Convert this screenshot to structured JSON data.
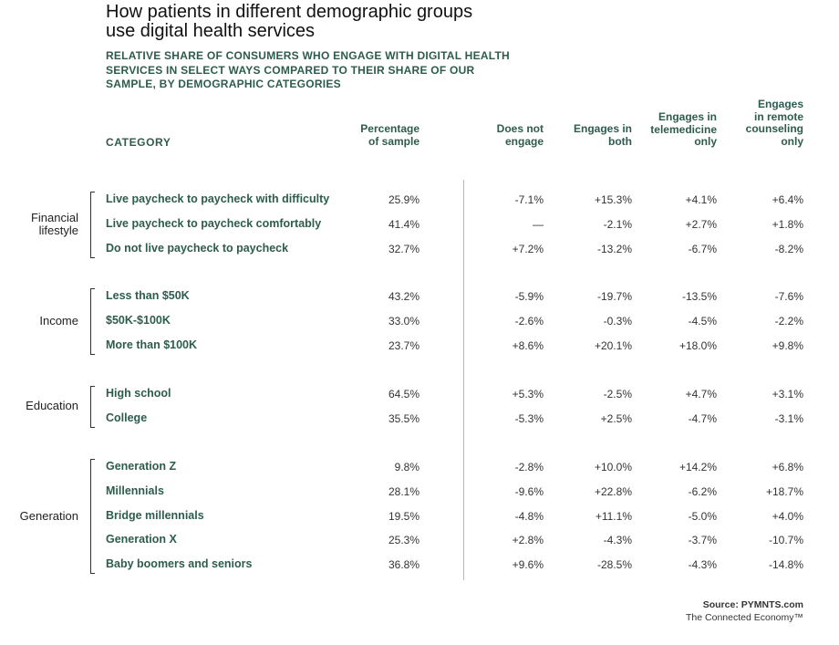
{
  "title": "How patients in different demographic groups use digital health services",
  "subtitle": "RELATIVE SHARE OF CONSUMERS WHO ENGAGE WITH DIGITAL HEALTH SERVICES IN SELECT WAYS COMPARED TO THEIR SHARE OF OUR SAMPLE, BY DEMOGRAPHIC CATEGORIES",
  "source": "Source: PYMNTS.com",
  "tagline": "The Connected Economy™",
  "colors": {
    "accent": "#2d5c4e",
    "text": "#333333",
    "divider": "#b8b8b8"
  },
  "chart_data": {
    "type": "table",
    "title": "How patients in different demographic groups use digital health services",
    "subtitle": "RELATIVE SHARE OF CONSUMERS WHO ENGAGE WITH DIGITAL HEALTH SERVICES IN SELECT WAYS COMPARED TO THEIR SHARE OF OUR SAMPLE, BY DEMOGRAPHIC CATEGORIES",
    "category_header": "CATEGORY",
    "columns": [
      "Percentage of sample",
      "Does not engage",
      "Engages in both",
      "Engages in telemedicine only",
      "Engages in remote counseling only"
    ],
    "groups": [
      {
        "name": "Financial lifestyle",
        "rows": [
          {
            "label": "Live paycheck to paycheck with difficulty",
            "values": [
              "25.9%",
              "-7.1%",
              "+15.3%",
              "+4.1%",
              "+6.4%"
            ]
          },
          {
            "label": "Live paycheck to paycheck comfortably",
            "values": [
              "41.4%",
              "—",
              "-2.1%",
              "+2.7%",
              "+1.8%"
            ]
          },
          {
            "label": "Do not live paycheck to paycheck",
            "values": [
              "32.7%",
              "+7.2%",
              "-13.2%",
              "-6.7%",
              "-8.2%"
            ]
          }
        ]
      },
      {
        "name": "Income",
        "rows": [
          {
            "label": "Less than $50K",
            "values": [
              "43.2%",
              "-5.9%",
              "-19.7%",
              "-13.5%",
              "-7.6%"
            ]
          },
          {
            "label": "$50K-$100K",
            "values": [
              "33.0%",
              "-2.6%",
              "-0.3%",
              "-4.5%",
              "-2.2%"
            ]
          },
          {
            "label": "More than $100K",
            "values": [
              "23.7%",
              "+8.6%",
              "+20.1%",
              "+18.0%",
              "+9.8%"
            ]
          }
        ]
      },
      {
        "name": "Education",
        "rows": [
          {
            "label": "High school",
            "values": [
              "64.5%",
              "+5.3%",
              "-2.5%",
              "+4.7%",
              "+3.1%"
            ]
          },
          {
            "label": "College",
            "values": [
              "35.5%",
              "-5.3%",
              "+2.5%",
              "-4.7%",
              "-3.1%"
            ]
          }
        ]
      },
      {
        "name": "Generation",
        "rows": [
          {
            "label": "Generation Z",
            "values": [
              "9.8%",
              "-2.8%",
              "+10.0%",
              "+14.2%",
              "+6.8%"
            ]
          },
          {
            "label": "Millennials",
            "values": [
              "28.1%",
              "-9.6%",
              "+22.8%",
              "-6.2%",
              "+18.7%"
            ]
          },
          {
            "label": "Bridge millennials",
            "values": [
              "19.5%",
              "-4.8%",
              "+11.1%",
              "-5.0%",
              "+4.0%"
            ]
          },
          {
            "label": "Generation X",
            "values": [
              "25.3%",
              "+2.8%",
              "-4.3%",
              "-3.7%",
              "-10.7%"
            ]
          },
          {
            "label": "Baby boomers and seniors",
            "values": [
              "36.8%",
              "+9.6%",
              "-28.5%",
              "-4.3%",
              "-14.8%"
            ]
          }
        ]
      }
    ]
  }
}
